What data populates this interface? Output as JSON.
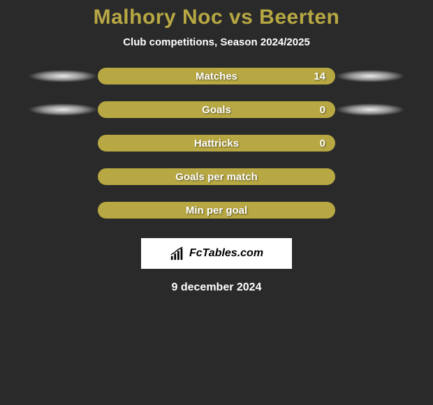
{
  "title": "Malhory Noc vs Beerten",
  "subtitle": "Club competitions, Season 2024/2025",
  "stats": [
    {
      "label": "Matches",
      "value": "14",
      "showValue": true,
      "showShadows": true
    },
    {
      "label": "Goals",
      "value": "0",
      "showValue": true,
      "showShadows": true
    },
    {
      "label": "Hattricks",
      "value": "0",
      "showValue": true,
      "showShadows": false
    },
    {
      "label": "Goals per match",
      "value": "",
      "showValue": false,
      "showShadows": false
    },
    {
      "label": "Min per goal",
      "value": "",
      "showValue": false,
      "showShadows": false
    }
  ],
  "logo": {
    "text": "FcTables.com"
  },
  "date": "9 december 2024",
  "colors": {
    "background": "#2a2a2a",
    "title_color": "#b8a843",
    "bar_color": "#b8a843",
    "text_color": "#ffffff",
    "logo_bg": "#ffffff",
    "logo_text": "#000000"
  }
}
